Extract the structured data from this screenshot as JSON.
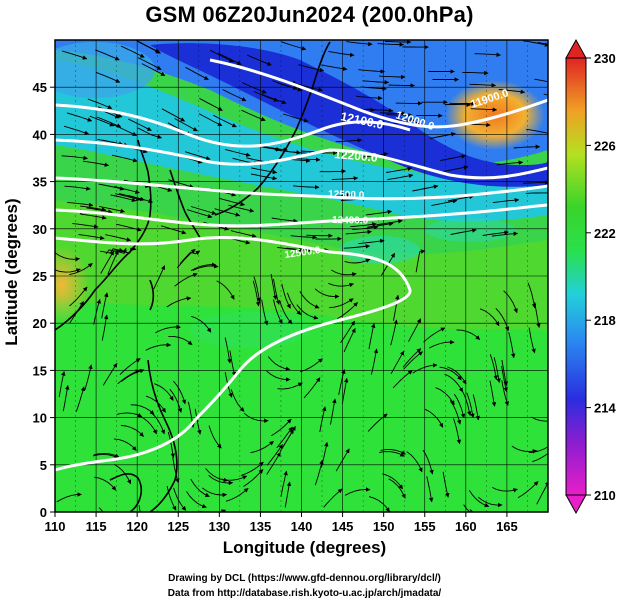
{
  "title": "GSM 06Z20Jun2024 (200.0hPa)",
  "axes": {
    "xlabel": "Longitude (degrees)",
    "ylabel": "Latitude  (degrees)",
    "x_ticks": [
      110,
      115,
      120,
      125,
      130,
      135,
      140,
      145,
      150,
      155,
      160,
      165
    ],
    "y_ticks": [
      0,
      5,
      10,
      15,
      20,
      25,
      30,
      35,
      40,
      45
    ],
    "xlim": [
      110,
      170
    ],
    "ylim": [
      0,
      50
    ]
  },
  "colorbar": {
    "ticks": [
      210,
      214,
      218,
      222,
      226,
      230
    ],
    "range": [
      210,
      230
    ]
  },
  "contour_labels": [
    "12000.0",
    "12100.0",
    "12200.0",
    "11900.0",
    "12500.0",
    "12400.0",
    "12500.0"
  ],
  "credits": {
    "line1": "Drawing by DCL (https://www.gfd-dennou.org/library/dcl/)",
    "line2": "Data from http://database.rish.kyoto-u.ac.jp/arch/jmadata/"
  },
  "colors": {
    "deep_blue": "#1a2fd6",
    "blue": "#2f7df0",
    "cyan": "#22c8d8",
    "green": "#2fe23a",
    "light_green": "#7ce22a",
    "orange": "#f08a24",
    "red": "#e22a2a",
    "magenta": "#e020c8"
  }
}
